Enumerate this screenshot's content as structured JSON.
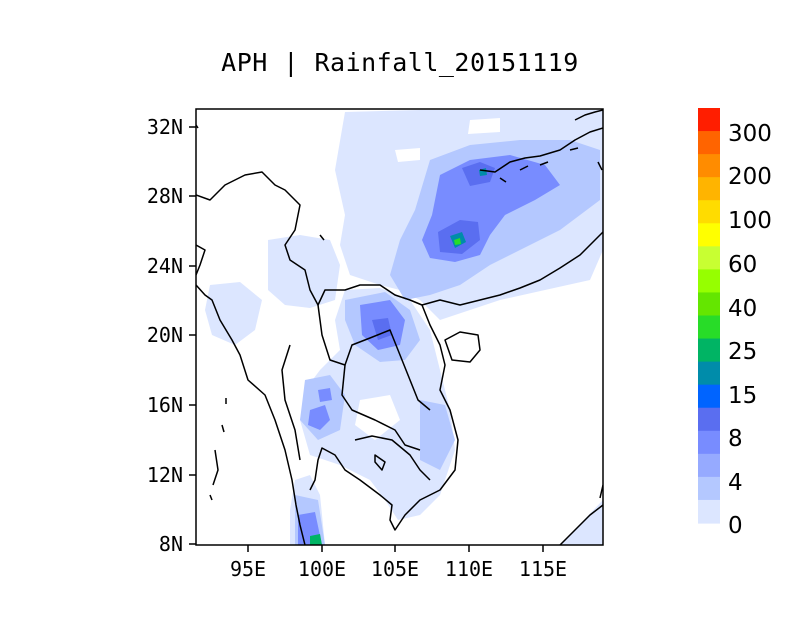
{
  "title": "APH | Rainfall_20151119",
  "map": {
    "lat_range": [
      8,
      33
    ],
    "lon_range": [
      91.5,
      119
    ],
    "lat_ticks": [
      "32N",
      "28N",
      "24N",
      "20N",
      "16N",
      "12N",
      "8N"
    ],
    "lon_ticks": [
      "95E",
      "100E",
      "105E",
      "110E",
      "115E"
    ]
  },
  "colorbar": {
    "labels": [
      "300",
      "200",
      "100",
      "60",
      "40",
      "25",
      "15",
      "8",
      "4",
      "0"
    ],
    "colors": [
      "#ff1e00",
      "#ff6400",
      "#ff8c00",
      "#ffb400",
      "#ffdc00",
      "#ffff00",
      "#c8ff32",
      "#96ff00",
      "#64e600",
      "#28dc28",
      "#00b464",
      "#008caa",
      "#0064ff",
      "#5a6ef0",
      "#788cff",
      "#96aaff",
      "#b4c8ff",
      "#dce6ff"
    ]
  }
}
